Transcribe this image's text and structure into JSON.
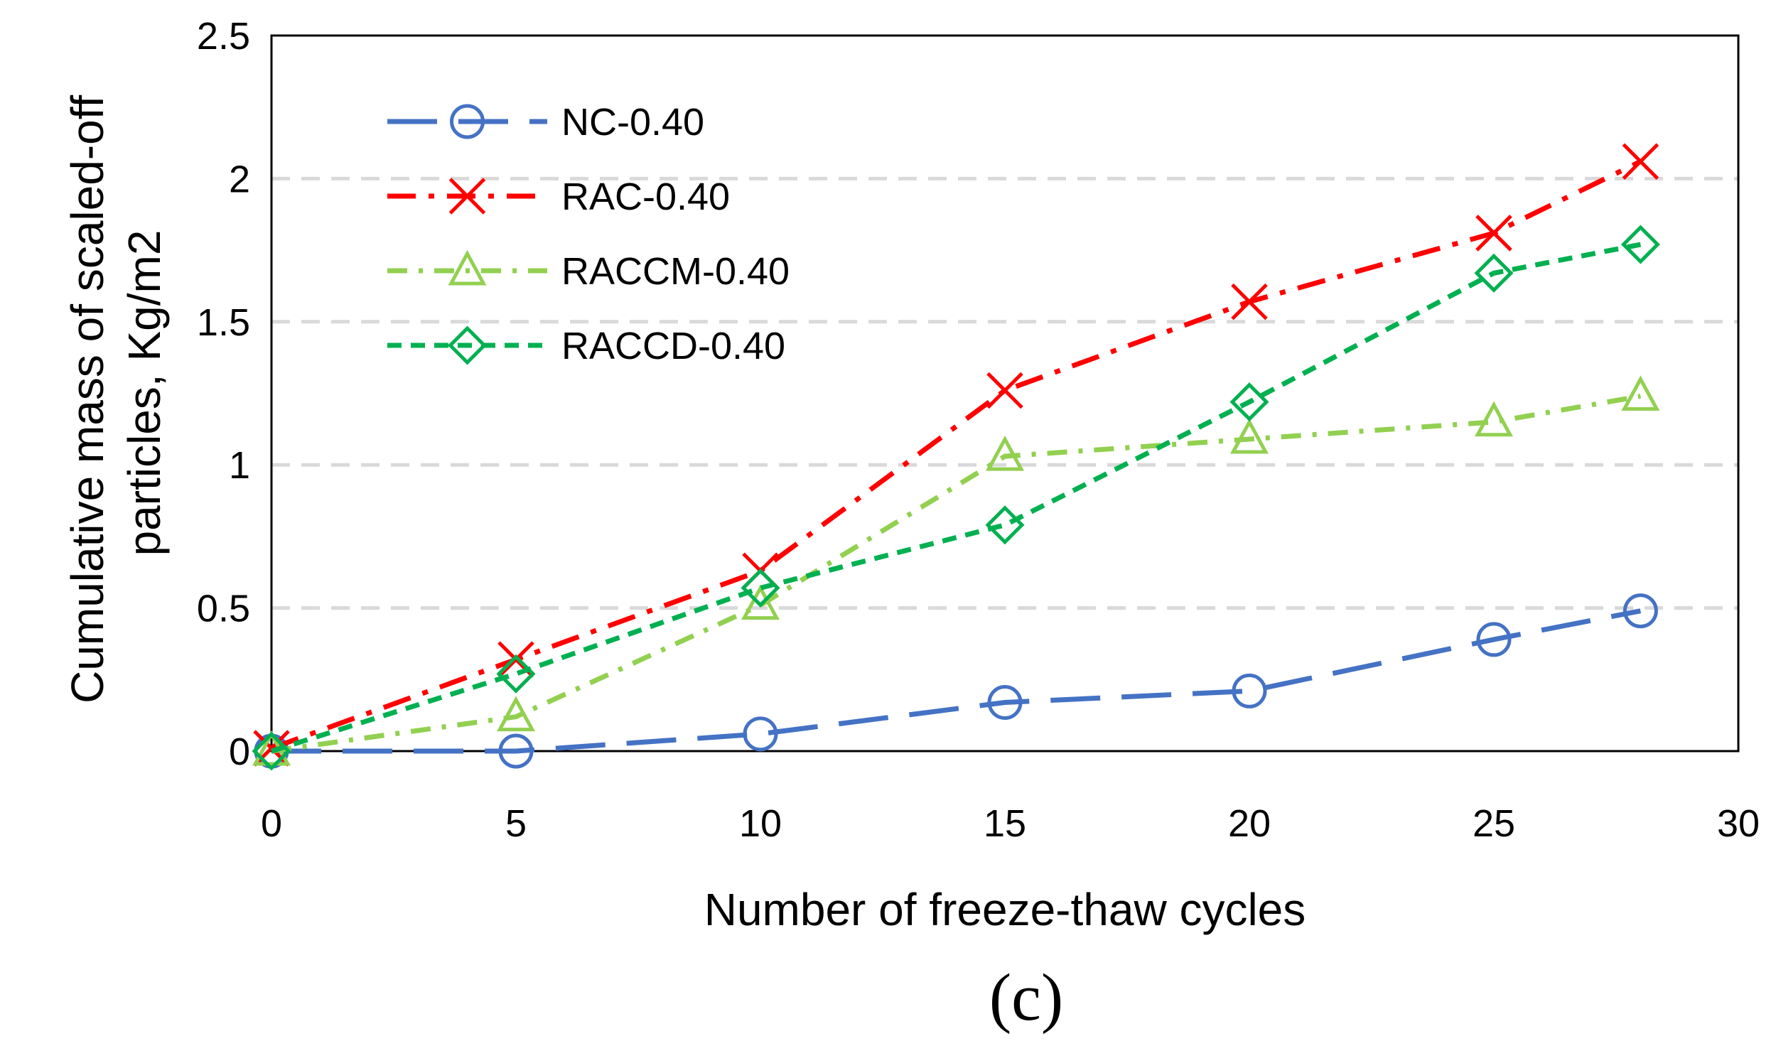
{
  "chart_data": {
    "type": "line",
    "xlabel": "Number of freeze-thaw cycles",
    "ylabel_lines": [
      "Cumulative mass of scaled-off",
      "particles, Kg/m2"
    ],
    "panel_label": "(c)",
    "xlim": [
      0,
      30
    ],
    "ylim": [
      0,
      2.5
    ],
    "xticks": [
      "0",
      "5",
      "10",
      "15",
      "20",
      "25",
      "30"
    ],
    "yticks": [
      "0",
      "0.5",
      "1",
      "1.5",
      "2",
      "2.5"
    ],
    "xtick_values": [
      0,
      5,
      10,
      15,
      20,
      25,
      30
    ],
    "ytick_values": [
      0,
      0.5,
      1,
      1.5,
      2,
      2.5
    ],
    "grid": "horizontal-dashed",
    "legend_position": "top-left",
    "series": [
      {
        "name": "NC-0.40",
        "color": "#4472C4",
        "marker": "circle",
        "dash": "long-dash",
        "x": [
          0,
          5,
          10,
          15,
          20,
          25,
          28
        ],
        "y": [
          0,
          0,
          0.06,
          0.17,
          0.21,
          0.39,
          0.49
        ]
      },
      {
        "name": "RAC-0.40",
        "color": "#FF0000",
        "marker": "x",
        "dash": "dash-dot",
        "x": [
          0,
          5,
          10,
          15,
          20,
          25,
          28
        ],
        "y": [
          0.01,
          0.32,
          0.63,
          1.26,
          1.57,
          1.81,
          2.06
        ]
      },
      {
        "name": "RACCM-0.40",
        "color": "#92D050",
        "marker": "triangle",
        "dash": "dash-dot-short",
        "x": [
          0,
          5,
          10,
          15,
          20,
          25,
          28
        ],
        "y": [
          0,
          0.12,
          0.51,
          1.03,
          1.09,
          1.15,
          1.24
        ]
      },
      {
        "name": "RACCD-0.40",
        "color": "#00B050",
        "marker": "diamond",
        "dash": "short-dash",
        "x": [
          0,
          5,
          10,
          15,
          20,
          25,
          28
        ],
        "y": [
          0,
          0.27,
          0.57,
          0.79,
          1.22,
          1.67,
          1.77
        ]
      }
    ]
  }
}
